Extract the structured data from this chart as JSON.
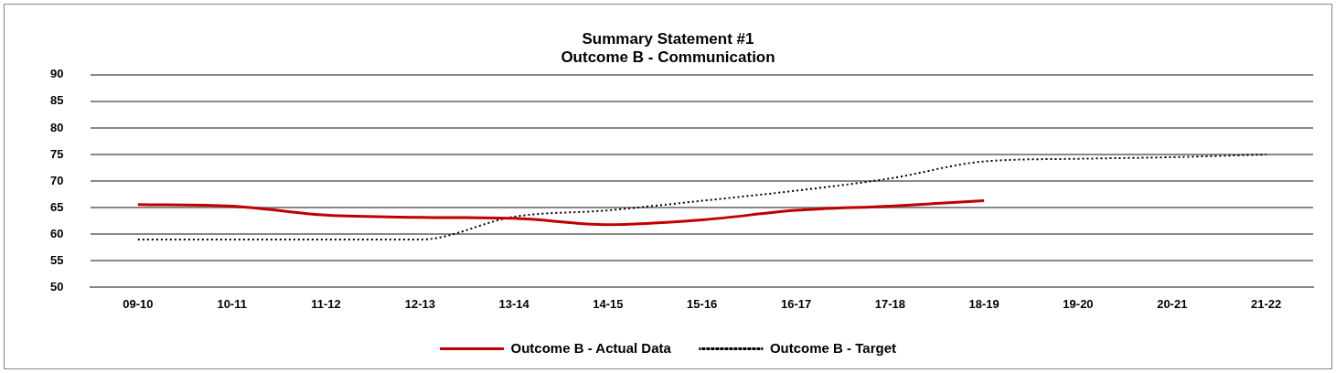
{
  "chart_data": {
    "type": "line",
    "title": [
      "Summary Statement #1",
      "Outcome B - Communication"
    ],
    "categories": [
      "09-10",
      "10-11",
      "11-12",
      "12-13",
      "13-14",
      "14-15",
      "15-16",
      "16-17",
      "17-18",
      "18-19",
      "19-20",
      "20-21",
      "21-22"
    ],
    "series": [
      {
        "name": "Outcome B - Actual Data",
        "color": "#c00000",
        "line_style": "solid",
        "values": [
          65.6,
          65.3,
          63.6,
          63.2,
          63,
          61.8,
          62.7,
          64.5,
          65.3,
          66.3,
          null,
          null,
          null
        ]
      },
      {
        "name": "Outcome B - Target",
        "color": "#000000",
        "line_style": "dotted",
        "values": [
          59,
          59,
          59,
          59,
          63.3,
          64.5,
          66.3,
          68.2,
          70.5,
          73.7,
          74.2,
          74.5,
          75
        ]
      }
    ],
    "ylim": [
      50,
      90
    ],
    "yticks": [
      50,
      55,
      60,
      65,
      70,
      75,
      80,
      85,
      90
    ],
    "grid": "y",
    "legend": "bottom",
    "marker": "none"
  }
}
